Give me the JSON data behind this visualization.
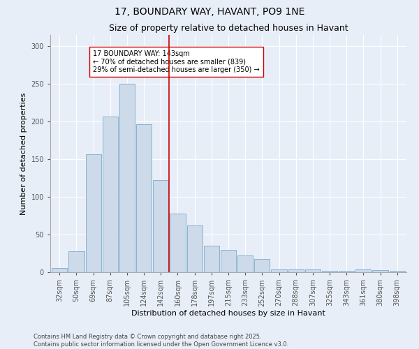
{
  "title": "17, BOUNDARY WAY, HAVANT, PO9 1NE",
  "subtitle": "Size of property relative to detached houses in Havant",
  "xlabel": "Distribution of detached houses by size in Havant",
  "ylabel": "Number of detached properties",
  "categories": [
    "32sqm",
    "50sqm",
    "69sqm",
    "87sqm",
    "105sqm",
    "124sqm",
    "142sqm",
    "160sqm",
    "178sqm",
    "197sqm",
    "215sqm",
    "233sqm",
    "252sqm",
    "270sqm",
    "288sqm",
    "307sqm",
    "325sqm",
    "343sqm",
    "361sqm",
    "380sqm",
    "398sqm"
  ],
  "values": [
    6,
    28,
    157,
    207,
    250,
    196,
    122,
    78,
    62,
    35,
    30,
    22,
    18,
    4,
    4,
    4,
    2,
    2,
    4,
    3,
    2
  ],
  "bar_color": "#ccdaea",
  "bar_edge_color": "#7aaac8",
  "vline_x_index": 6.5,
  "vline_color": "#cc0000",
  "annotation_text": "17 BOUNDARY WAY: 143sqm\n← 70% of detached houses are smaller (839)\n29% of semi-detached houses are larger (350) →",
  "annotation_box_color": "#ffffff",
  "annotation_box_edge_color": "#cc0000",
  "ylim": [
    0,
    315
  ],
  "yticks": [
    0,
    50,
    100,
    150,
    200,
    250,
    300
  ],
  "footer_text": "Contains HM Land Registry data © Crown copyright and database right 2025.\nContains public sector information licensed under the Open Government Licence v3.0.",
  "background_color": "#e8eef8",
  "plot_bg_color": "#e8eef8",
  "title_fontsize": 10,
  "subtitle_fontsize": 9,
  "axis_label_fontsize": 8,
  "tick_fontsize": 7,
  "annotation_fontsize": 7,
  "footer_fontsize": 6
}
